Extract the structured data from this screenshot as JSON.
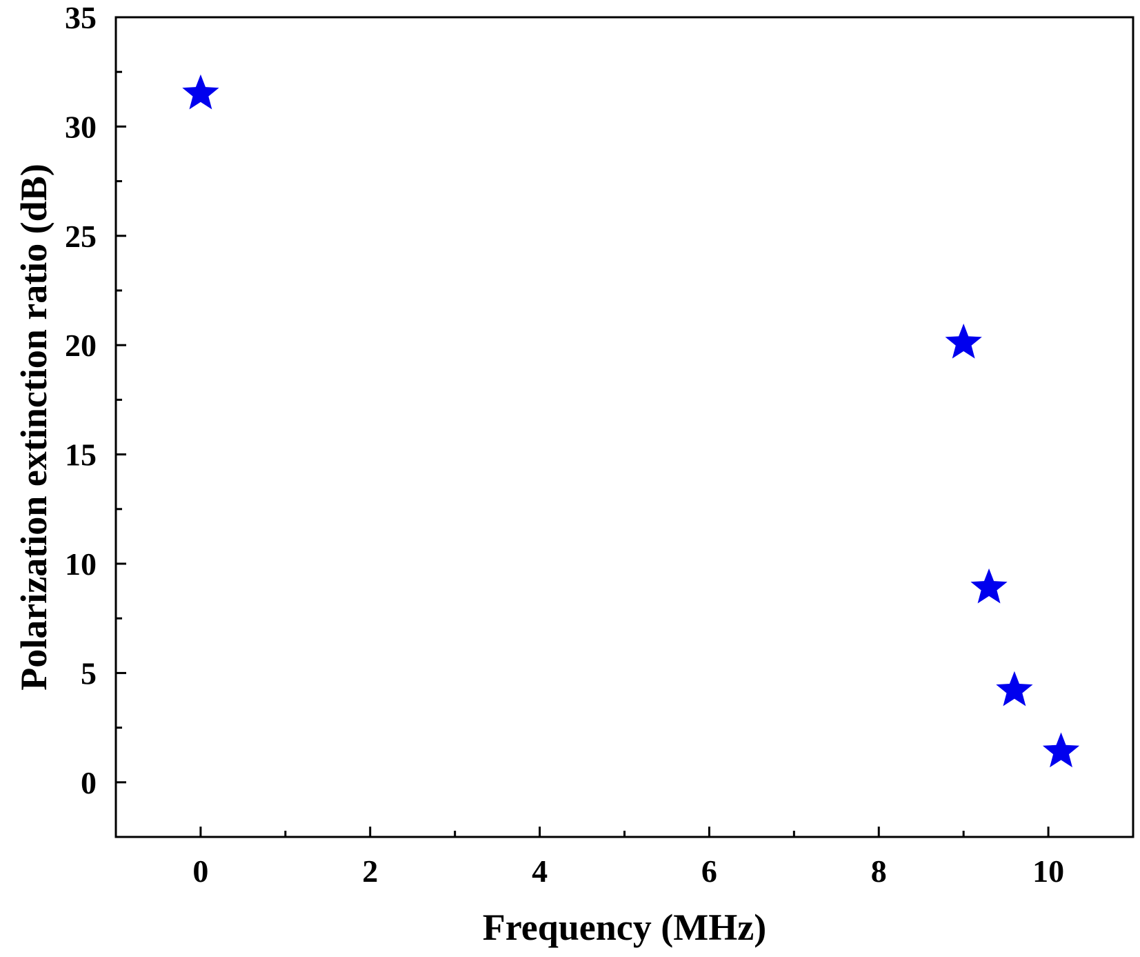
{
  "chart_data": {
    "type": "scatter",
    "title": "",
    "xlabel": "Frequency (MHz)",
    "ylabel": "Polarization extinction ratio (dB)",
    "xlim": [
      -1,
      11
    ],
    "ylim": [
      -2.5,
      35
    ],
    "xticks": [
      0,
      2,
      4,
      6,
      8,
      10
    ],
    "xtick_labels": [
      "0",
      "2",
      "4",
      "6",
      "8",
      "10"
    ],
    "yticks": [
      0,
      5,
      10,
      15,
      20,
      25,
      30,
      35
    ],
    "ytick_labels": [
      "0",
      "5",
      "10",
      "15",
      "20",
      "25",
      "30",
      "35"
    ],
    "x_minor_step": 1,
    "y_minor_step": 2.5,
    "grid": false,
    "legend": "none",
    "marker": "star",
    "marker_color": "#0000ee",
    "series": [
      {
        "x": [
          0,
          9,
          9.3,
          9.6,
          10.15
        ],
        "y": [
          31.5,
          20.1,
          8.9,
          4.2,
          1.4
        ]
      }
    ]
  }
}
